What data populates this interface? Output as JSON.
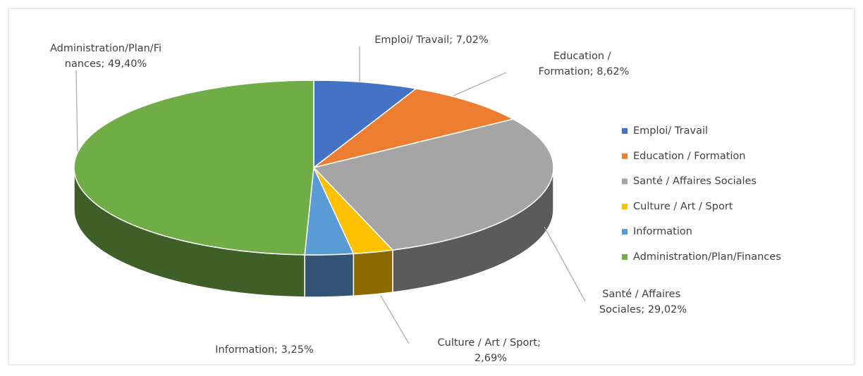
{
  "chart_data": {
    "type": "pie",
    "categories": [
      "Emploi/ Travail",
      "Education / Formation",
      "Santé / Affaires Sociales",
      "Culture / Art / Sport",
      "Information",
      "Administration/Plan/Finances"
    ],
    "values": [
      7.02,
      8.62,
      29.02,
      2.69,
      3.25,
      49.4
    ],
    "value_labels": [
      "Emploi/ Travail; 7,02%",
      "Education / Formation; 8,62%",
      "Santé / Affaires Sociales; 29,02%",
      "Culture / Art / Sport; 2,69%",
      "Information; 3,25%",
      "Administration/Plan/Finances; 49,40%"
    ],
    "colors": [
      "#4472c4",
      "#ed7d31",
      "#a5a5a5",
      "#ffc000",
      "#5b9bd5",
      "#70ad47"
    ],
    "legend": "right"
  }
}
